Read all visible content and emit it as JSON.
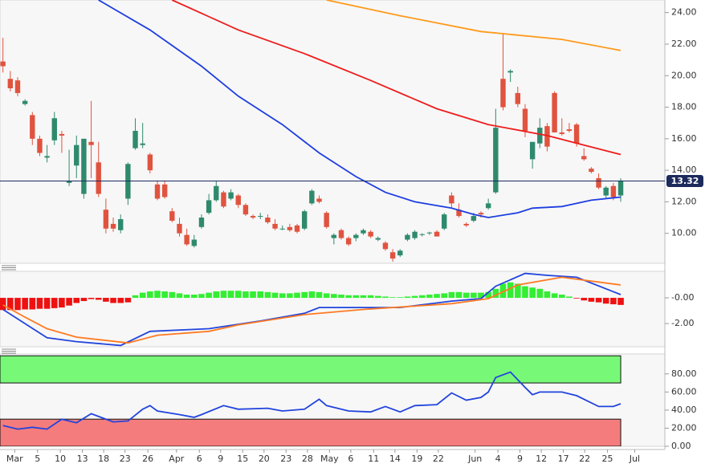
{
  "chart_data": [
    {
      "type": "candlestick",
      "xlim": [
        -0.4,
        90
      ],
      "ylim": [
        8.1,
        24.8
      ],
      "yticks": [
        {
          "value": 10,
          "label": "10.00"
        },
        {
          "value": 12,
          "label": "12.00"
        },
        {
          "value": 14,
          "label": "14.00"
        },
        {
          "value": 16,
          "label": "16.00"
        },
        {
          "value": 18,
          "label": "18.00"
        },
        {
          "value": 20,
          "label": "20.00"
        },
        {
          "value": 22,
          "label": "22.00"
        },
        {
          "value": 24,
          "label": "24.00"
        }
      ],
      "candles": {
        "up_color": "#2f8a6d",
        "down_color": "#e0533f",
        "open": [
          20.9,
          19.8,
          19.7,
          18.2,
          17.5,
          16.0,
          14.8,
          15.9,
          16.3,
          13.2,
          14.3,
          12.5,
          15.8,
          14.5,
          11.5,
          10.6,
          10.2,
          12.2,
          15.4,
          15.6,
          15.0,
          13.1,
          13.1,
          11.4,
          10.6,
          9.9,
          9.2,
          10.4,
          11.3,
          12.1,
          12.6,
          12.2,
          12.4,
          11.8,
          11.1,
          11.1,
          11.0,
          10.6,
          10.3,
          10.4,
          10.5,
          10.3,
          11.9,
          12.2,
          11.3,
          9.7,
          10.2,
          9.7,
          9.7,
          10.0,
          10.1,
          9.6,
          9.4,
          8.8,
          8.6,
          9.6,
          9.7,
          9.9,
          10.0,
          10.1,
          10.3,
          12.4,
          11.5,
          10.6,
          10.8,
          11.3,
          11.6,
          12.6,
          19.8,
          20.2,
          18.9,
          17.9,
          14.7,
          15.7,
          16.8,
          18.9,
          16.4,
          16.6,
          16.9,
          14.9,
          14.1,
          13.5,
          12.4,
          13.0,
          12.4
        ],
        "high": [
          22.4,
          20.3,
          19.9,
          18.5,
          17.7,
          16.2,
          15.6,
          17.7,
          16.5,
          15.3,
          16.2,
          16.0,
          18.4,
          15.8,
          12.2,
          11.0,
          11.2,
          14.5,
          17.3,
          17.0,
          15.1,
          13.3,
          13.3,
          11.6,
          11.0,
          10.3,
          9.9,
          11.2,
          12.5,
          13.3,
          12.7,
          12.8,
          12.5,
          11.9,
          11.2,
          11.3,
          11.2,
          10.9,
          10.5,
          10.6,
          10.6,
          11.5,
          12.8,
          12.4,
          11.4,
          10.0,
          10.3,
          9.8,
          10.0,
          10.3,
          10.2,
          9.8,
          9.5,
          9.0,
          9.0,
          10.0,
          10.2,
          10.0,
          10.1,
          10.2,
          11.3,
          12.6,
          11.9,
          10.7,
          11.3,
          11.4,
          12.2,
          17.9,
          22.7,
          20.4,
          19.3,
          18.2,
          15.8,
          17.3,
          17.0,
          19.0,
          17.3,
          17.0,
          17.0,
          15.4,
          14.2,
          13.8,
          13.0,
          13.2,
          13.5
        ],
        "low": [
          20.2,
          19.0,
          18.7,
          18.1,
          15.6,
          14.9,
          14.5,
          15.6,
          15.1,
          13.0,
          13.5,
          12.2,
          13.5,
          12.3,
          10.0,
          10.1,
          10.0,
          11.8,
          15.3,
          15.4,
          13.8,
          12.1,
          12.2,
          10.7,
          9.8,
          9.2,
          9.1,
          10.3,
          11.2,
          12.0,
          11.6,
          12.1,
          11.6,
          11.1,
          10.9,
          10.9,
          10.6,
          10.2,
          10.2,
          10.1,
          10.0,
          10.2,
          11.8,
          11.9,
          10.3,
          9.3,
          9.6,
          9.2,
          9.5,
          9.9,
          9.7,
          9.5,
          8.9,
          8.2,
          8.5,
          9.5,
          9.6,
          9.8,
          9.9,
          9.8,
          10.2,
          11.6,
          11.0,
          10.4,
          10.7,
          11.0,
          11.5,
          12.5,
          17.8,
          19.6,
          18.0,
          16.1,
          14.1,
          15.4,
          15.2,
          16.4,
          16.2,
          16.4,
          15.5,
          14.6,
          13.8,
          12.8,
          12.2,
          12.1,
          12.0
        ],
        "close": [
          20.6,
          19.2,
          18.9,
          18.4,
          16.0,
          15.1,
          14.9,
          17.3,
          16.2,
          13.3,
          15.6,
          16.0,
          15.6,
          12.5,
          10.3,
          10.3,
          10.9,
          14.4,
          16.5,
          15.7,
          14.0,
          12.2,
          12.3,
          10.8,
          10.0,
          9.3,
          9.6,
          11.0,
          12.1,
          13.0,
          11.7,
          12.6,
          11.8,
          11.2,
          11.0,
          11.1,
          10.7,
          10.3,
          10.3,
          10.2,
          10.1,
          11.4,
          12.7,
          12.0,
          10.4,
          9.9,
          9.7,
          9.3,
          9.9,
          10.2,
          9.8,
          9.7,
          9.0,
          8.4,
          8.9,
          9.9,
          10.1,
          9.95,
          10.05,
          9.8,
          11.2,
          11.9,
          11.1,
          10.5,
          11.1,
          11.2,
          11.9,
          16.7,
          18.0,
          20.3,
          18.2,
          16.5,
          15.8,
          16.7,
          15.5,
          16.4,
          16.3,
          16.5,
          15.7,
          14.7,
          13.9,
          12.9,
          12.9,
          12.3,
          13.32
        ]
      },
      "last_price_color": "#1c2a5c",
      "lines": [
        {
          "color": "#1e3ee0",
          "x": [
            13,
            20,
            27,
            32,
            38,
            43,
            48,
            52,
            56,
            61,
            64,
            66,
            70,
            72,
            76,
            80,
            84
          ],
          "values": [
            24.8,
            22.9,
            20.6,
            18.7,
            16.9,
            15.1,
            13.6,
            12.6,
            12.0,
            11.6,
            11.2,
            11.0,
            11.3,
            11.6,
            11.7,
            12.1,
            12.3
          ]
        },
        {
          "color": "#ee1c1c",
          "x": [
            23,
            32,
            41,
            50,
            59,
            66,
            74,
            79,
            84
          ],
          "values": [
            24.8,
            22.9,
            21.4,
            19.7,
            17.9,
            16.9,
            16.2,
            15.6,
            15.0
          ]
        },
        {
          "color": "#ff9a1a",
          "x": [
            44,
            54,
            65,
            76,
            84
          ],
          "values": [
            24.8,
            23.8,
            22.8,
            22.3,
            21.6
          ]
        }
      ]
    },
    {
      "type": "bar",
      "xlim": [
        -0.4,
        90
      ],
      "ylim": [
        -3.8,
        2.06
      ],
      "yticks": [
        {
          "value": -2,
          "label": "-2.00"
        },
        {
          "value": 0,
          "label": "-0.00"
        }
      ],
      "up_color": "#33ee33",
      "down_color": "#ee1111",
      "values": [
        -0.95,
        -0.95,
        -0.95,
        -0.9,
        -0.9,
        -0.85,
        -0.85,
        -0.8,
        -0.75,
        -0.6,
        -0.4,
        -0.25,
        -0.1,
        -0.15,
        -0.3,
        -0.4,
        -0.4,
        -0.35,
        0.2,
        0.4,
        0.5,
        0.55,
        0.5,
        0.45,
        0.35,
        0.25,
        0.25,
        0.3,
        0.4,
        0.5,
        0.55,
        0.55,
        0.55,
        0.5,
        0.5,
        0.5,
        0.45,
        0.4,
        0.35,
        0.35,
        0.4,
        0.45,
        0.5,
        0.45,
        0.35,
        0.3,
        0.25,
        0.2,
        0.2,
        0.2,
        0.2,
        0.15,
        0.1,
        0.05,
        0.05,
        0.1,
        0.15,
        0.2,
        0.25,
        0.3,
        0.35,
        0.45,
        0.45,
        0.4,
        0.4,
        0.4,
        0.45,
        0.7,
        1.1,
        1.2,
        1.1,
        0.9,
        0.8,
        0.7,
        0.5,
        0.35,
        0.25,
        0.1,
        -0.05,
        -0.2,
        -0.3,
        -0.35,
        -0.45,
        -0.5,
        -0.55
      ],
      "lines": [
        {
          "color": "#2244dd",
          "x": [
            0,
            3,
            6,
            10,
            16,
            20,
            28,
            35,
            41,
            43,
            54,
            61,
            65,
            67,
            71,
            74,
            78,
            84
          ],
          "values": [
            -0.9,
            -2.0,
            -3.1,
            -3.4,
            -3.7,
            -2.6,
            -2.4,
            -1.8,
            -1.2,
            -0.75,
            -0.75,
            -0.25,
            -0.06,
            0.9,
            1.9,
            1.75,
            1.6,
            0.25
          ]
        },
        {
          "color": "#ff7a22",
          "x": [
            0,
            3,
            6,
            10,
            17,
            21,
            28,
            32,
            41,
            49,
            61,
            66,
            70,
            76,
            84
          ],
          "values": [
            -0.55,
            -1.5,
            -2.4,
            -3.05,
            -3.5,
            -2.9,
            -2.6,
            -2.1,
            -1.3,
            -0.9,
            -0.45,
            -0.06,
            1.0,
            1.6,
            1.0
          ]
        }
      ]
    },
    {
      "type": "line",
      "xlim": [
        -0.4,
        90
      ],
      "ylim": [
        0,
        102
      ],
      "yticks": [
        {
          "value": 0,
          "label": "0.00"
        },
        {
          "value": 20,
          "label": "20.00"
        },
        {
          "value": 40,
          "label": "40.00"
        },
        {
          "value": 60,
          "label": "60.00"
        },
        {
          "value": 80,
          "label": "80.00"
        }
      ],
      "xticks": [
        {
          "value": 1.6,
          "label": "Mar"
        },
        {
          "value": 4.7,
          "label": "5"
        },
        {
          "value": 7.8,
          "label": "10"
        },
        {
          "value": 10.8,
          "label": "13"
        },
        {
          "value": 13.7,
          "label": "18"
        },
        {
          "value": 16.6,
          "label": "23"
        },
        {
          "value": 19.7,
          "label": "26"
        },
        {
          "value": 23.6,
          "label": "Apr"
        },
        {
          "value": 26.7,
          "label": "6"
        },
        {
          "value": 29.6,
          "label": "9"
        },
        {
          "value": 32.6,
          "label": "15"
        },
        {
          "value": 35.5,
          "label": "20"
        },
        {
          "value": 38.5,
          "label": "23"
        },
        {
          "value": 41.4,
          "label": "28"
        },
        {
          "value": 44.4,
          "label": "May"
        },
        {
          "value": 47.3,
          "label": "6"
        },
        {
          "value": 50.4,
          "label": "11"
        },
        {
          "value": 53.3,
          "label": "14"
        },
        {
          "value": 56.3,
          "label": "19"
        },
        {
          "value": 59.2,
          "label": "22"
        },
        {
          "value": 64.2,
          "label": "Jun"
        },
        {
          "value": 67.3,
          "label": "4"
        },
        {
          "value": 70.3,
          "label": "9"
        },
        {
          "value": 73.2,
          "label": "12"
        },
        {
          "value": 76.2,
          "label": "17"
        },
        {
          "value": 79.1,
          "label": "22"
        },
        {
          "value": 82.2,
          "label": "25"
        },
        {
          "value": 85.9,
          "label": "Jul"
        }
      ],
      "zones": [
        {
          "from": 70,
          "to": 100,
          "color": "#77f977"
        },
        {
          "from": 0,
          "to": 30,
          "color": "#f47c7c"
        }
      ],
      "lines": [
        {
          "color": "#2244dd",
          "x": [
            0,
            2,
            4,
            6,
            8,
            10,
            12,
            14,
            15,
            17,
            19,
            20,
            21,
            24,
            26,
            27,
            30,
            32,
            36,
            38,
            41,
            43,
            44,
            47,
            50,
            52,
            54,
            56,
            59,
            61,
            63,
            65,
            66,
            67,
            69,
            71,
            72,
            73,
            76,
            78,
            81,
            83,
            84
          ],
          "values": [
            23,
            19,
            21,
            19,
            30,
            26,
            36,
            30,
            27,
            28,
            41,
            45,
            39,
            35,
            32,
            35,
            45,
            41,
            42,
            39,
            41,
            52,
            45,
            39,
            38,
            44,
            38,
            45,
            46,
            59,
            51,
            54,
            60,
            76,
            82,
            65,
            57,
            60,
            60,
            56,
            44,
            44,
            47
          ]
        }
      ]
    }
  ]
}
